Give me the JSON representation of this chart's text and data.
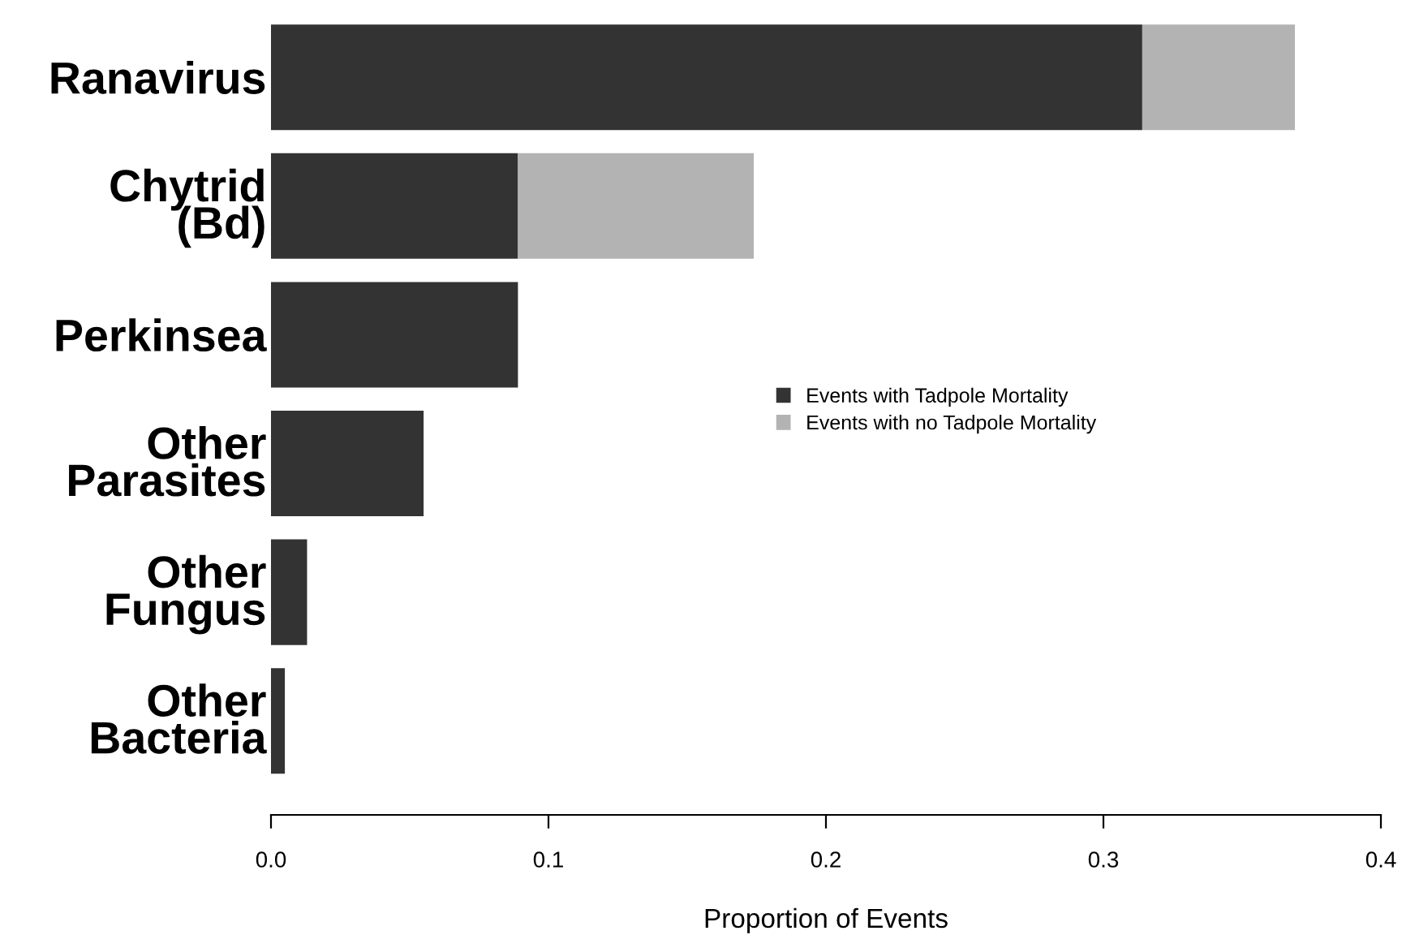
{
  "chart_data": {
    "type": "bar",
    "orientation": "horizontal",
    "stacked": true,
    "categories": [
      "Ranavirus",
      "Chytrid\n(Bd)",
      "Perkinsea",
      "Other\nParasites",
      "Other\nFungus",
      "Other\nBacteria"
    ],
    "series": [
      {
        "name": "Events with Tadpole Mortality",
        "color": "#333333",
        "values": [
          0.314,
          0.089,
          0.089,
          0.055,
          0.013,
          0.005
        ]
      },
      {
        "name": "Events with no Tadpole Mortality",
        "color": "#b3b3b3",
        "values": [
          0.055,
          0.085,
          null,
          null,
          null,
          null
        ]
      }
    ],
    "xlabel": "Proportion of Events",
    "xlim": [
      0,
      0.4
    ],
    "xticks": [
      {
        "value": 0,
        "label": "0.0"
      },
      0.1,
      0.2,
      0.3,
      0.4
    ],
    "grid": false,
    "legend": "right"
  }
}
